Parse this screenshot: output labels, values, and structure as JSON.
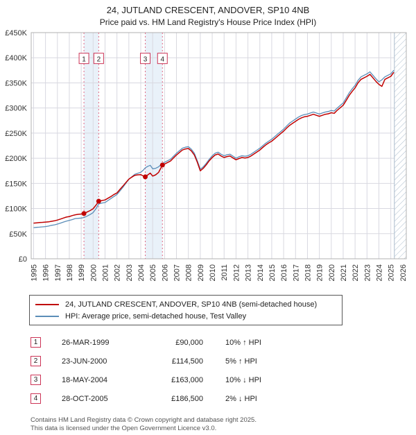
{
  "header": {
    "title": "24, JUTLAND CRESCENT, ANDOVER, SP10 4NB",
    "subtitle": "Price paid vs. HM Land Registry's House Price Index (HPI)"
  },
  "colors": {
    "property": "#c00000",
    "hpi": "#5b8db8",
    "band": "#dde9f6",
    "dashed": "#e06a85",
    "annotation_border": "#cc3355",
    "grid": "#d8d8e0",
    "frame": "#b0b0b0",
    "hatch": "#aabbcc",
    "text": "#333333"
  },
  "legend": {
    "property": "24, JUTLAND CRESCENT, ANDOVER, SP10 4NB (semi-detached house)",
    "hpi": "HPI: Average price, semi-detached house, Test Valley"
  },
  "footer": {
    "line1": "Contains HM Land Registry data © Crown copyright and database right 2025.",
    "line2": "This data is licensed under the Open Government Licence v3.0."
  },
  "chart_data": {
    "type": "line",
    "title": "24, JUTLAND CRESCENT, ANDOVER, SP10 4NB",
    "subtitle": "Price paid vs. HM Land Registry's House Price Index (HPI)",
    "ylim": [
      0,
      450
    ],
    "xlim": [
      1994.8,
      2026.3
    ],
    "y_ticks": [
      0,
      50,
      100,
      150,
      200,
      250,
      300,
      350,
      400,
      450
    ],
    "y_tick_labels": [
      "£0",
      "£50K",
      "£100K",
      "£150K",
      "£200K",
      "£250K",
      "£300K",
      "£350K",
      "£400K",
      "£450K"
    ],
    "x_ticks": [
      1995,
      1996,
      1997,
      1998,
      1999,
      2000,
      2001,
      2002,
      2003,
      2004,
      2005,
      2006,
      2007,
      2008,
      2009,
      2010,
      2011,
      2012,
      2013,
      2014,
      2015,
      2016,
      2017,
      2018,
      2019,
      2020,
      2021,
      2022,
      2023,
      2024,
      2025,
      2026
    ],
    "grid": true,
    "legend_position": "below",
    "annotation_y": 398,
    "hatch_start": 2025.3,
    "units": "GBP thousands",
    "transactions": [
      {
        "n": "1",
        "x": 1999.23,
        "value": 90,
        "date": "26-MAR-1999",
        "price": "£90,000",
        "hpi": "10% ↑ HPI"
      },
      {
        "n": "2",
        "x": 2000.47,
        "value": 114.5,
        "date": "23-JUN-2000",
        "price": "£114,500",
        "hpi": "5% ↑ HPI"
      },
      {
        "n": "3",
        "x": 2004.38,
        "value": 163,
        "date": "18-MAY-2004",
        "price": "£163,000",
        "hpi": "10% ↓ HPI"
      },
      {
        "n": "4",
        "x": 2005.82,
        "value": 186.5,
        "date": "28-OCT-2005",
        "price": "£186,500",
        "hpi": "2% ↓ HPI"
      }
    ],
    "series": [
      {
        "id": "hpi",
        "name": "HPI: Average price, semi-detached house, Test Valley",
        "color": "#5b8db8",
        "width": 1.3,
        "points": [
          [
            1995.0,
            62
          ],
          [
            1995.25,
            62.5
          ],
          [
            1995.5,
            63
          ],
          [
            1995.75,
            63.5
          ],
          [
            1996.0,
            64
          ],
          [
            1996.25,
            65
          ],
          [
            1996.5,
            66.5
          ],
          [
            1996.75,
            67.5
          ],
          [
            1997.0,
            69
          ],
          [
            1997.25,
            71
          ],
          [
            1997.5,
            73
          ],
          [
            1997.75,
            75
          ],
          [
            1998.0,
            76.5
          ],
          [
            1998.25,
            78
          ],
          [
            1998.5,
            80
          ],
          [
            1998.75,
            80.5
          ],
          [
            1999.0,
            81
          ],
          [
            1999.23,
            82
          ],
          [
            1999.5,
            85
          ],
          [
            1999.75,
            88
          ],
          [
            2000.0,
            92
          ],
          [
            2000.25,
            100
          ],
          [
            2000.47,
            109
          ],
          [
            2000.75,
            111
          ],
          [
            2001.0,
            112
          ],
          [
            2001.25,
            116
          ],
          [
            2001.5,
            120
          ],
          [
            2001.75,
            124
          ],
          [
            2002.0,
            128
          ],
          [
            2002.25,
            135
          ],
          [
            2002.5,
            142
          ],
          [
            2002.75,
            150
          ],
          [
            2003.0,
            158
          ],
          [
            2003.25,
            163
          ],
          [
            2003.5,
            168
          ],
          [
            2003.75,
            170
          ],
          [
            2004.0,
            172
          ],
          [
            2004.2,
            176
          ],
          [
            2004.38,
            181
          ],
          [
            2004.6,
            184
          ],
          [
            2004.8,
            186
          ],
          [
            2005.0,
            179
          ],
          [
            2005.25,
            180
          ],
          [
            2005.5,
            183
          ],
          [
            2005.82,
            190
          ],
          [
            2006.0,
            192
          ],
          [
            2006.25,
            195
          ],
          [
            2006.5,
            198
          ],
          [
            2006.75,
            204
          ],
          [
            2007.0,
            210
          ],
          [
            2007.25,
            215
          ],
          [
            2007.5,
            220
          ],
          [
            2007.75,
            222
          ],
          [
            2008.0,
            223
          ],
          [
            2008.25,
            218
          ],
          [
            2008.5,
            210
          ],
          [
            2008.75,
            195
          ],
          [
            2009.0,
            178
          ],
          [
            2009.25,
            183
          ],
          [
            2009.5,
            190
          ],
          [
            2009.75,
            198
          ],
          [
            2010.0,
            205
          ],
          [
            2010.25,
            210
          ],
          [
            2010.5,
            212
          ],
          [
            2010.75,
            208
          ],
          [
            2011.0,
            205
          ],
          [
            2011.25,
            207
          ],
          [
            2011.5,
            208
          ],
          [
            2011.75,
            204
          ],
          [
            2012.0,
            200
          ],
          [
            2012.25,
            203
          ],
          [
            2012.5,
            205
          ],
          [
            2012.75,
            204
          ],
          [
            2013.0,
            205
          ],
          [
            2013.25,
            208
          ],
          [
            2013.5,
            212
          ],
          [
            2013.75,
            216
          ],
          [
            2014.0,
            220
          ],
          [
            2014.25,
            225
          ],
          [
            2014.5,
            230
          ],
          [
            2014.75,
            234
          ],
          [
            2015.0,
            238
          ],
          [
            2015.25,
            243
          ],
          [
            2015.5,
            248
          ],
          [
            2015.75,
            253
          ],
          [
            2016.0,
            258
          ],
          [
            2016.25,
            264
          ],
          [
            2016.5,
            270
          ],
          [
            2016.75,
            274
          ],
          [
            2017.0,
            278
          ],
          [
            2017.25,
            282
          ],
          [
            2017.5,
            285
          ],
          [
            2017.75,
            287
          ],
          [
            2018.0,
            288
          ],
          [
            2018.25,
            290
          ],
          [
            2018.5,
            292
          ],
          [
            2018.75,
            290
          ],
          [
            2019.0,
            288
          ],
          [
            2019.25,
            290
          ],
          [
            2019.5,
            292
          ],
          [
            2019.75,
            293
          ],
          [
            2020.0,
            295
          ],
          [
            2020.25,
            294
          ],
          [
            2020.5,
            300
          ],
          [
            2020.75,
            305
          ],
          [
            2021.0,
            310
          ],
          [
            2021.25,
            320
          ],
          [
            2021.5,
            330
          ],
          [
            2021.75,
            338
          ],
          [
            2022.0,
            345
          ],
          [
            2022.25,
            355
          ],
          [
            2022.5,
            362
          ],
          [
            2022.75,
            365
          ],
          [
            2023.0,
            368
          ],
          [
            2023.25,
            372
          ],
          [
            2023.5,
            365
          ],
          [
            2023.75,
            358
          ],
          [
            2024.0,
            352
          ],
          [
            2024.25,
            356
          ],
          [
            2024.5,
            362
          ],
          [
            2024.75,
            365
          ],
          [
            2025.0,
            368
          ],
          [
            2025.25,
            375
          ]
        ]
      },
      {
        "id": "property",
        "name": "24, JUTLAND CRESCENT, ANDOVER, SP10 4NB (semi-detached house)",
        "color": "#c00000",
        "width": 1.5,
        "points": [
          [
            1995.0,
            71
          ],
          [
            1995.25,
            71.5
          ],
          [
            1995.5,
            72
          ],
          [
            1995.75,
            72.5
          ],
          [
            1996.0,
            73
          ],
          [
            1996.25,
            73.5
          ],
          [
            1996.5,
            74.5
          ],
          [
            1996.75,
            75.5
          ],
          [
            1997.0,
            77
          ],
          [
            1997.25,
            79
          ],
          [
            1997.5,
            81
          ],
          [
            1997.75,
            83
          ],
          [
            1998.0,
            84
          ],
          [
            1998.25,
            86
          ],
          [
            1998.5,
            87.5
          ],
          [
            1998.75,
            88.5
          ],
          [
            1999.0,
            89
          ],
          [
            1999.23,
            90
          ],
          [
            1999.5,
            93
          ],
          [
            1999.75,
            96
          ],
          [
            2000.0,
            99.5
          ],
          [
            2000.25,
            107
          ],
          [
            2000.47,
            114.5
          ],
          [
            2000.75,
            116
          ],
          [
            2001.0,
            117
          ],
          [
            2001.25,
            120.5
          ],
          [
            2001.5,
            124
          ],
          [
            2001.75,
            128
          ],
          [
            2002.0,
            131
          ],
          [
            2002.25,
            138
          ],
          [
            2002.5,
            144.5
          ],
          [
            2002.75,
            151.5
          ],
          [
            2003.0,
            158.5
          ],
          [
            2003.25,
            162.5
          ],
          [
            2003.5,
            166
          ],
          [
            2003.75,
            167
          ],
          [
            2004.0,
            167.5
          ],
          [
            2004.2,
            165
          ],
          [
            2004.38,
            163
          ],
          [
            2004.6,
            167
          ],
          [
            2004.8,
            170.5
          ],
          [
            2005.0,
            164.5
          ],
          [
            2005.25,
            167
          ],
          [
            2005.5,
            172
          ],
          [
            2005.82,
            186.5
          ],
          [
            2006.0,
            188.5
          ],
          [
            2006.25,
            191.5
          ],
          [
            2006.5,
            194.5
          ],
          [
            2006.75,
            200.5
          ],
          [
            2007.0,
            206.5
          ],
          [
            2007.25,
            211.5
          ],
          [
            2007.5,
            216.5
          ],
          [
            2007.75,
            218.5
          ],
          [
            2008.0,
            219.5
          ],
          [
            2008.25,
            214.5
          ],
          [
            2008.5,
            206.5
          ],
          [
            2008.75,
            192
          ],
          [
            2009.0,
            175
          ],
          [
            2009.25,
            180
          ],
          [
            2009.5,
            187
          ],
          [
            2009.75,
            195
          ],
          [
            2010.0,
            201.5
          ],
          [
            2010.25,
            206.5
          ],
          [
            2010.5,
            208.5
          ],
          [
            2010.75,
            204.5
          ],
          [
            2011.0,
            201.5
          ],
          [
            2011.25,
            203.5
          ],
          [
            2011.5,
            204.5
          ],
          [
            2011.75,
            200.5
          ],
          [
            2012.0,
            197
          ],
          [
            2012.25,
            199.5
          ],
          [
            2012.5,
            201.5
          ],
          [
            2012.75,
            200.5
          ],
          [
            2013.0,
            201.5
          ],
          [
            2013.25,
            204.5
          ],
          [
            2013.5,
            208.5
          ],
          [
            2013.75,
            212.5
          ],
          [
            2014.0,
            216.5
          ],
          [
            2014.25,
            221.5
          ],
          [
            2014.5,
            226.5
          ],
          [
            2014.75,
            230.5
          ],
          [
            2015.0,
            234
          ],
          [
            2015.25,
            239
          ],
          [
            2015.5,
            244
          ],
          [
            2015.75,
            249
          ],
          [
            2016.0,
            254
          ],
          [
            2016.25,
            260
          ],
          [
            2016.5,
            265.5
          ],
          [
            2016.75,
            269.5
          ],
          [
            2017.0,
            273.5
          ],
          [
            2017.25,
            277.5
          ],
          [
            2017.5,
            280.5
          ],
          [
            2017.75,
            282.5
          ],
          [
            2018.0,
            283.5
          ],
          [
            2018.25,
            285.5
          ],
          [
            2018.5,
            287.5
          ],
          [
            2018.75,
            285.5
          ],
          [
            2019.0,
            283.5
          ],
          [
            2019.25,
            285.5
          ],
          [
            2019.5,
            287.5
          ],
          [
            2019.75,
            288.5
          ],
          [
            2020.0,
            290.5
          ],
          [
            2020.25,
            289.5
          ],
          [
            2020.5,
            295.5
          ],
          [
            2020.75,
            300.5
          ],
          [
            2021.0,
            305.5
          ],
          [
            2021.25,
            315
          ],
          [
            2021.5,
            325
          ],
          [
            2021.75,
            333
          ],
          [
            2022.0,
            340
          ],
          [
            2022.25,
            350
          ],
          [
            2022.5,
            357
          ],
          [
            2022.75,
            360
          ],
          [
            2023.0,
            363
          ],
          [
            2023.25,
            367
          ],
          [
            2023.5,
            360
          ],
          [
            2023.75,
            353
          ],
          [
            2024.0,
            347
          ],
          [
            2024.25,
            343
          ],
          [
            2024.5,
            357
          ],
          [
            2024.75,
            360
          ],
          [
            2025.0,
            363
          ],
          [
            2025.25,
            371
          ]
        ]
      }
    ]
  }
}
